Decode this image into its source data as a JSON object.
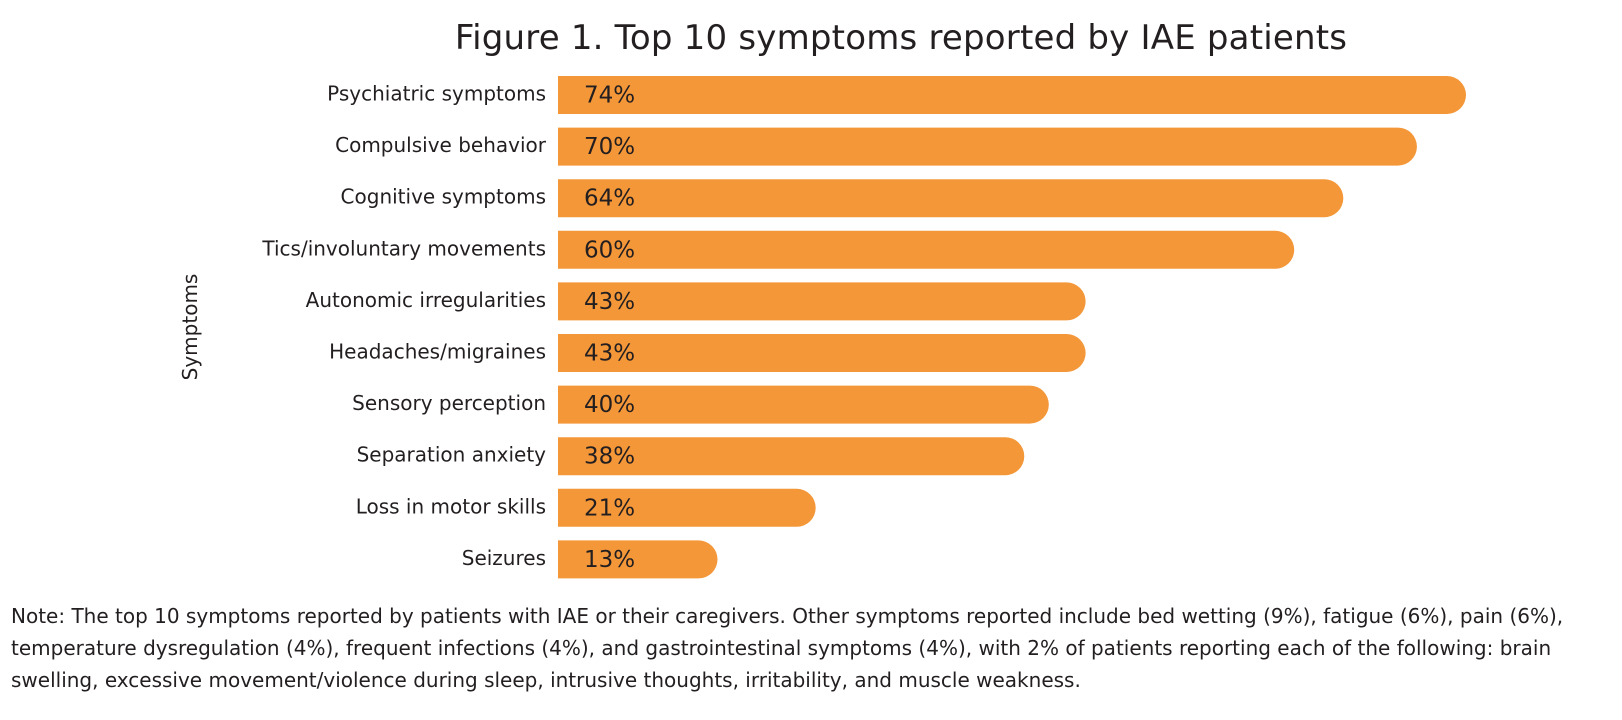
{
  "chart_data": {
    "type": "bar",
    "orientation": "horizontal",
    "title": "Figure 1. Top 10 symptoms reported by IAE patients",
    "ylabel": "Symptoms",
    "xlabel": "",
    "categories": [
      "Psychiatric symptoms",
      "Compulsive behavior",
      "Cognitive symptoms",
      "Tics/involuntary movements",
      "Autonomic irregularities",
      "Headaches/migraines",
      "Sensory perception",
      "Separation anxiety",
      "Loss in motor skills",
      "Seizures"
    ],
    "values": [
      74,
      70,
      64,
      60,
      43,
      43,
      40,
      38,
      21,
      13
    ],
    "data_labels": [
      "74%",
      "70%",
      "64%",
      "60%",
      "43%",
      "43%",
      "40%",
      "38%",
      "21%",
      "13%"
    ],
    "unit": "%",
    "xlim": [
      0,
      74
    ],
    "grid": false,
    "legend": "none",
    "colors": {
      "bar": "#f49739",
      "text": "#231f20"
    }
  },
  "note": "Note: The top 10 symptoms reported by patients with IAE or their caregivers. Other symptoms reported include bed wetting (9%), fatigue (6%), pain (6%), temperature dysregulation (4%), frequent infections (4%), and gastrointestinal symptoms (4%), with 2% of patients reporting each of the following: brain swelling, excessive movement/violence during sleep, intrusive thoughts, irritability, and muscle weakness."
}
